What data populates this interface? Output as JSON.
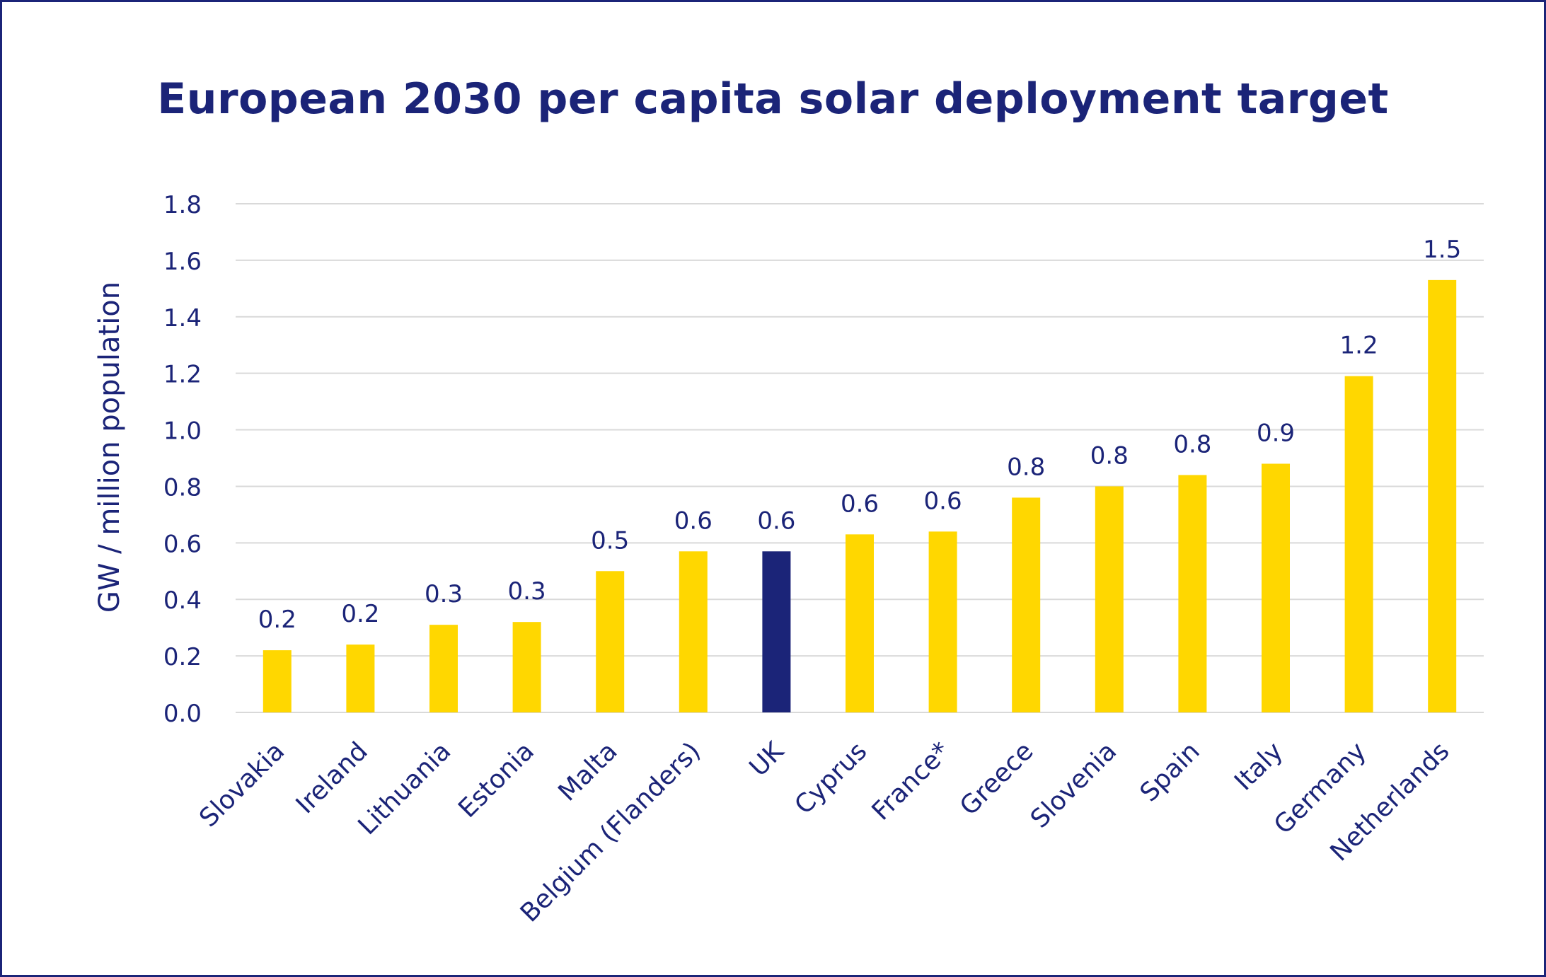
{
  "chart_data": {
    "type": "bar",
    "title": "European 2030 per capita solar deployment target",
    "xlabel": "",
    "ylabel": "GW / million population",
    "ylim": [
      0,
      1.8
    ],
    "yticks": [
      "0.0",
      "0.2",
      "0.4",
      "0.6",
      "0.8",
      "1.0",
      "1.2",
      "1.4",
      "1.6",
      "1.8"
    ],
    "grid": true,
    "categories": [
      "Slovakia",
      "Ireland",
      "Lithuania",
      "Estonia",
      "Malta",
      "Belgium (Flanders)",
      "UK",
      "Cyprus",
      "France*",
      "Greece",
      "Slovenia",
      "Spain",
      "Italy",
      "Germany",
      "Netherlands"
    ],
    "values": [
      0.22,
      0.24,
      0.31,
      0.32,
      0.5,
      0.57,
      0.57,
      0.63,
      0.64,
      0.76,
      0.8,
      0.84,
      0.88,
      1.19,
      1.53
    ],
    "data_labels": [
      "0.2",
      "0.2",
      "0.3",
      "0.3",
      "0.5",
      "0.6",
      "0.6",
      "0.6",
      "0.6",
      "0.8",
      "0.8",
      "0.8",
      "0.9",
      "1.2",
      "1.5"
    ],
    "highlight_category": "UK",
    "colors": {
      "bar": "#ffd700",
      "highlight": "#1b2478",
      "text": "#1b2478",
      "grid": "#d9d9d9"
    }
  }
}
